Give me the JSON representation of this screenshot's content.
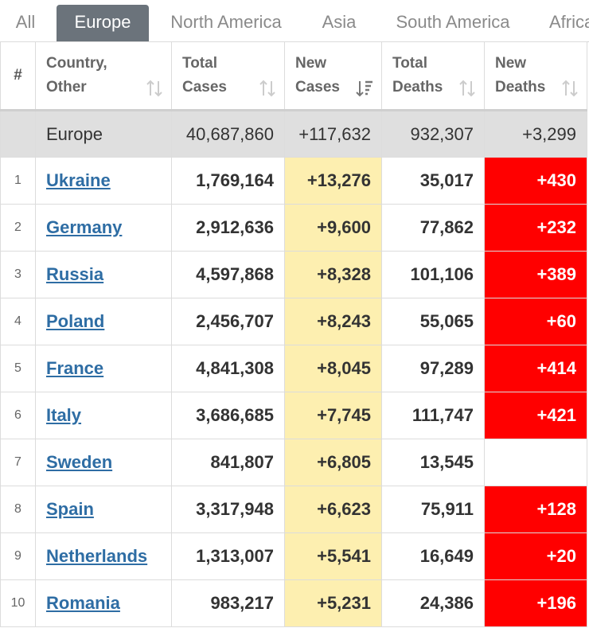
{
  "tabs": [
    {
      "label": "All"
    },
    {
      "label": "Europe"
    },
    {
      "label": "North America"
    },
    {
      "label": "Asia"
    },
    {
      "label": "South America"
    },
    {
      "label": "Africa"
    }
  ],
  "active_tab": "Europe",
  "columns": {
    "rank": "#",
    "country": [
      "Country,",
      "Other"
    ],
    "total_cases": [
      "Total",
      "Cases"
    ],
    "new_cases": [
      "New",
      "Cases"
    ],
    "total_deaths": [
      "Total",
      "Deaths"
    ],
    "new_deaths": [
      "New",
      "Deaths"
    ]
  },
  "total_row": {
    "country": "Europe",
    "total_cases": "40,687,860",
    "new_cases": "+117,632",
    "total_deaths": "932,307",
    "new_deaths": "+3,299"
  },
  "rows": [
    {
      "rank": "1",
      "country": "Ukraine",
      "total_cases": "1,769,164",
      "new_cases": "+13,276",
      "total_deaths": "35,017",
      "new_deaths": "+430"
    },
    {
      "rank": "2",
      "country": "Germany",
      "total_cases": "2,912,636",
      "new_cases": "+9,600",
      "total_deaths": "77,862",
      "new_deaths": "+232"
    },
    {
      "rank": "3",
      "country": "Russia",
      "total_cases": "4,597,868",
      "new_cases": "+8,328",
      "total_deaths": "101,106",
      "new_deaths": "+389"
    },
    {
      "rank": "4",
      "country": "Poland",
      "total_cases": "2,456,707",
      "new_cases": "+8,243",
      "total_deaths": "55,065",
      "new_deaths": "+60"
    },
    {
      "rank": "5",
      "country": "France",
      "total_cases": "4,841,308",
      "new_cases": "+8,045",
      "total_deaths": "97,289",
      "new_deaths": "+414"
    },
    {
      "rank": "6",
      "country": "Italy",
      "total_cases": "3,686,685",
      "new_cases": "+7,745",
      "total_deaths": "111,747",
      "new_deaths": "+421"
    },
    {
      "rank": "7",
      "country": "Sweden",
      "total_cases": "841,807",
      "new_cases": "+6,805",
      "total_deaths": "13,545",
      "new_deaths": ""
    },
    {
      "rank": "8",
      "country": "Spain",
      "total_cases": "3,317,948",
      "new_cases": "+6,623",
      "total_deaths": "75,911",
      "new_deaths": "+128"
    },
    {
      "rank": "9",
      "country": "Netherlands",
      "total_cases": "1,313,007",
      "new_cases": "+5,541",
      "total_deaths": "16,649",
      "new_deaths": "+20"
    },
    {
      "rank": "10",
      "country": "Romania",
      "total_cases": "983,217",
      "new_cases": "+5,231",
      "total_deaths": "24,386",
      "new_deaths": "+196"
    }
  ],
  "colors": {
    "active_tab_bg": "#6b737b",
    "new_cases_bg": "#fdefb0",
    "new_deaths_bg": "#ff0000",
    "link": "#2e6da4",
    "total_row_bg": "#dfdfdf"
  },
  "icons": {
    "sort": "sort-arrows-icon",
    "sort_active": "sort-desc-icon"
  }
}
